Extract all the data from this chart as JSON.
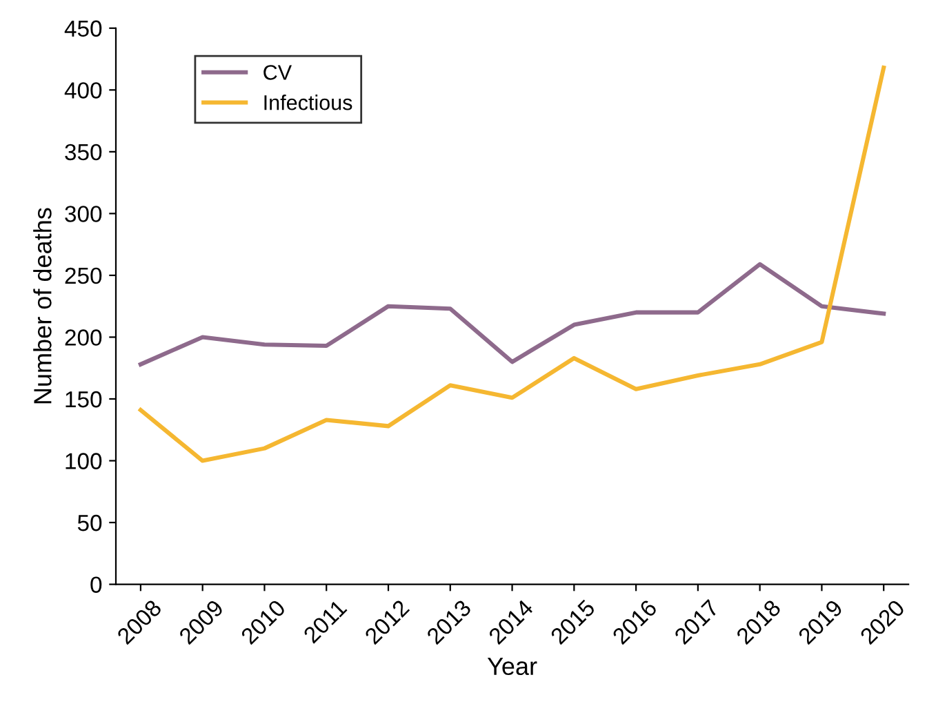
{
  "chart_data": {
    "type": "line",
    "xlabel": "Year",
    "ylabel": "Number of deaths",
    "categories": [
      "2008",
      "2009",
      "2010",
      "2011",
      "2012",
      "2013",
      "2014",
      "2015",
      "2016",
      "2017",
      "2018",
      "2019",
      "2020"
    ],
    "series": [
      {
        "name": "CV",
        "color": "#8e6a8c",
        "values": [
          178,
          200,
          194,
          193,
          225,
          223,
          180,
          210,
          220,
          220,
          259,
          225,
          219
        ]
      },
      {
        "name": "Infectious",
        "color": "#f5b731",
        "values": [
          141,
          100,
          110,
          133,
          128,
          161,
          151,
          183,
          158,
          169,
          178,
          196,
          418
        ]
      }
    ],
    "ylim": [
      0,
      450
    ],
    "yticks": [
      0,
      50,
      100,
      150,
      200,
      250,
      300,
      350,
      400,
      450
    ],
    "grid": false,
    "legend": "top left",
    "marker": "none",
    "line_style": "solid"
  }
}
